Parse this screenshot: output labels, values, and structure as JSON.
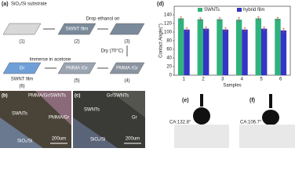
{
  "panel_labels": [
    "(a)",
    "(b)",
    "(c)",
    "(d)",
    "(e)",
    "(f)"
  ],
  "scheme": {
    "numbers": [
      "(1)",
      "(2)",
      "(3)",
      "(4)",
      "(5)",
      "(6)"
    ],
    "labels": [
      "SiO₂/Si substrate",
      "SWNT film",
      "Drop ethanol on",
      "Dry (70°C)",
      "PMMA /Gr",
      "PMMA /Gr",
      "Immerse in acetone",
      "Gr",
      "SWNT film"
    ]
  },
  "micrograph_b": {
    "labels": [
      "PMMA/Gr/SWNTs",
      "SWNTs",
      "PMMA/Gr",
      "SiO₂/Si"
    ],
    "scale": "200um"
  },
  "micrograph_c": {
    "labels": [
      "Gr/SWNTs",
      "SWNTs",
      "Gr",
      "SiO₂/Si"
    ],
    "scale": "200um"
  },
  "droplets": [
    "CA:132.8°",
    "CA:106.7°"
  ],
  "chart_data": {
    "type": "bar",
    "ylabel": "Contact Angle(°)",
    "xlabel": "Samples",
    "categories": [
      "1",
      "2",
      "3",
      "4",
      "5",
      "6"
    ],
    "series": [
      {
        "name": "SWNTs",
        "color": "#2fb37c",
        "values": [
          132,
          130,
          130,
          129,
          132,
          131
        ],
        "errors": [
          3,
          3,
          3,
          4,
          3,
          3
        ]
      },
      {
        "name": "hybrid film",
        "color": "#3434c6",
        "values": [
          106,
          108,
          106,
          106,
          108,
          104
        ],
        "errors": [
          4,
          4,
          4,
          4,
          4,
          4
        ]
      }
    ],
    "ylim": [
      0,
      160
    ],
    "yticks": [
      0,
      20,
      40,
      60,
      80,
      100,
      120,
      140
    ],
    "legend": "top",
    "error_color": "#d04040"
  }
}
